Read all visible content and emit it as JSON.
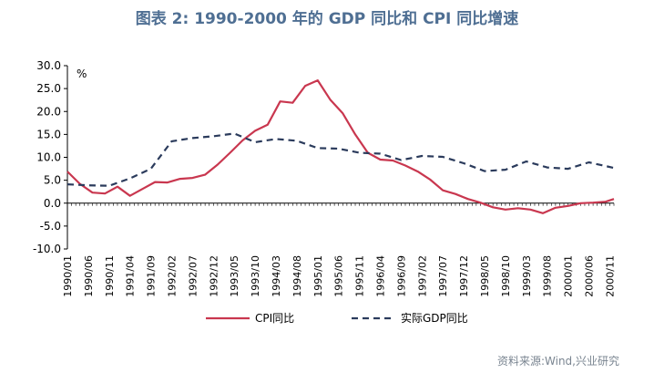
{
  "header": {
    "title": "图表 2:  1990-2000 年的 GDP 同比和 CPI 同比增速"
  },
  "footer": {
    "source": "资料来源:Wind,兴业研究"
  },
  "chart_data": {
    "type": "line",
    "title": "图表 2:  1990-2000 年的 GDP 同比和 CPI 同比增速",
    "ylabel": "%",
    "xlabel": "",
    "ylim": [
      -10,
      30
    ],
    "yticks": [
      "30.0",
      "25.0",
      "20.0",
      "15.0",
      "10.0",
      "5.0",
      "0.0",
      "-5.0",
      "-10.0"
    ],
    "ytick_values": [
      30,
      25,
      20,
      15,
      10,
      5,
      0,
      -5,
      -10
    ],
    "x_start": "1990/01",
    "x_end": "2000/12",
    "xticks": [
      "1990/01",
      "1990/06",
      "1990/11",
      "1991/04",
      "1991/09",
      "1992/02",
      "1992/07",
      "1992/12",
      "1993/05",
      "1993/10",
      "1994/03",
      "1994/08",
      "1995/01",
      "1995/06",
      "1995/11",
      "1996/04",
      "1996/09",
      "1997/02",
      "1997/07",
      "1997/12",
      "1998/05",
      "1998/10",
      "1999/03",
      "1999/08",
      "2000/01",
      "2000/06",
      "2000/11"
    ],
    "legend_position": "bottom",
    "grid": false,
    "series": [
      {
        "name": "CPI同比",
        "color": "#c9374f",
        "style": "solid",
        "x": [
          "1990/01",
          "1990/04",
          "1990/07",
          "1990/10",
          "1991/01",
          "1991/04",
          "1991/07",
          "1991/10",
          "1992/01",
          "1992/04",
          "1992/07",
          "1992/10",
          "1993/01",
          "1993/04",
          "1993/07",
          "1993/10",
          "1994/01",
          "1994/04",
          "1994/07",
          "1994/10",
          "1995/01",
          "1995/04",
          "1995/07",
          "1995/10",
          "1996/01",
          "1996/04",
          "1996/07",
          "1996/10",
          "1997/01",
          "1997/04",
          "1997/07",
          "1997/10",
          "1998/01",
          "1998/04",
          "1998/07",
          "1998/10",
          "1999/01",
          "1999/04",
          "1999/07",
          "1999/10",
          "2000/01",
          "2000/04",
          "2000/07",
          "2000/10",
          "2000/12"
        ],
        "values": [
          6.9,
          4.2,
          2.3,
          2.1,
          3.6,
          1.6,
          3.1,
          4.6,
          4.5,
          5.3,
          5.5,
          6.2,
          8.4,
          11.0,
          13.7,
          15.8,
          17.1,
          22.2,
          21.9,
          25.6,
          26.8,
          22.6,
          19.6,
          15.0,
          11.0,
          9.5,
          9.3,
          8.2,
          6.9,
          5.1,
          2.8,
          2.0,
          0.9,
          0.1,
          -0.9,
          -1.4,
          -1.1,
          -1.4,
          -2.2,
          -1.0,
          -0.6,
          0.0,
          0.1,
          0.3,
          0.9
        ]
      },
      {
        "name": "实际GDP同比",
        "color": "#2b3b5c",
        "style": "dashed",
        "x": [
          "1990/01",
          "1990/06",
          "1990/11",
          "1991/04",
          "1991/09",
          "1992/02",
          "1992/07",
          "1992/12",
          "1993/05",
          "1993/10",
          "1994/03",
          "1994/08",
          "1995/01",
          "1995/06",
          "1995/11",
          "1996/04",
          "1996/09",
          "1997/02",
          "1997/07",
          "1997/12",
          "1998/05",
          "1998/10",
          "1999/03",
          "1999/08",
          "2000/01",
          "2000/06",
          "2000/12"
        ],
        "values": [
          4.1,
          3.9,
          3.8,
          5.4,
          7.5,
          13.5,
          14.2,
          14.6,
          15.2,
          13.3,
          14.0,
          13.6,
          12.0,
          11.9,
          11.0,
          10.8,
          9.4,
          10.3,
          10.1,
          8.7,
          7.0,
          7.3,
          9.1,
          7.8,
          7.5,
          8.9,
          7.7
        ]
      }
    ]
  }
}
